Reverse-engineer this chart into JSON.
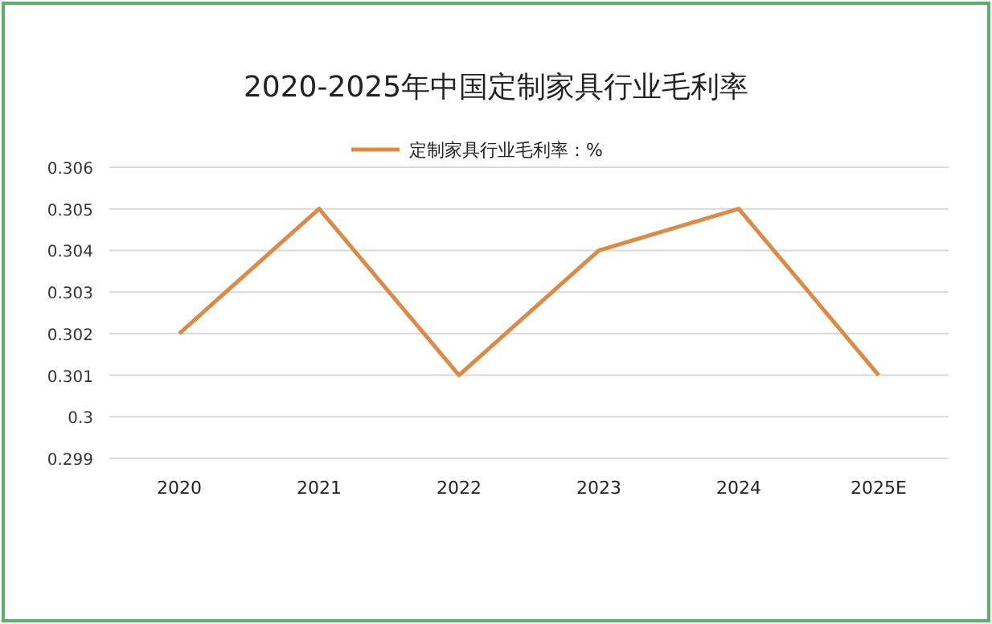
{
  "chart_data": {
    "type": "line",
    "title": "2020-2025年中国定制家具行业毛利率",
    "categories": [
      "2020",
      "2021",
      "2022",
      "2023",
      "2024",
      "2025E"
    ],
    "series": [
      {
        "name": "定制家具行业毛利率：%",
        "color": "#d98b48",
        "values": [
          0.302,
          0.305,
          0.301,
          0.304,
          0.305,
          0.301
        ]
      }
    ],
    "ylim": [
      0.299,
      0.306
    ],
    "yticks": [
      0.299,
      0.3,
      0.301,
      0.302,
      0.303,
      0.304,
      0.305,
      0.306
    ],
    "grid": "y",
    "legend": "top",
    "marker": "none",
    "line_style": "solid"
  }
}
